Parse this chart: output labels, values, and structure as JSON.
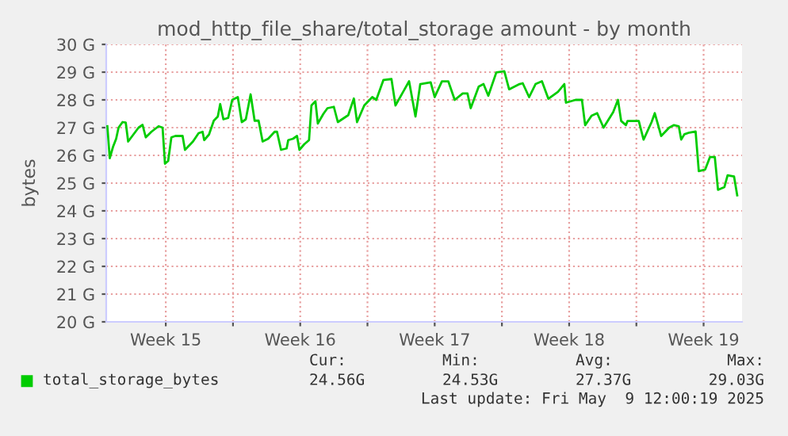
{
  "chart_data": {
    "type": "line",
    "title": "mod_http_file_share/total_storage amount - by month",
    "ylabel": "bytes",
    "x": [
      "2025-04-07T11:00",
      "2025-04-07T14:00",
      "2025-04-07T18:00",
      "2025-04-07T22:00",
      "2025-04-08T01:00",
      "2025-04-08T06:00",
      "2025-04-08T10:00",
      "2025-04-08T13:00",
      "2025-04-09T02:00",
      "2025-04-09T07:00",
      "2025-04-09T11:00",
      "2025-04-09T18:00",
      "2025-04-10T03:00",
      "2025-04-10T08:00",
      "2025-04-10T11:00",
      "2025-04-10T15:00",
      "2025-04-10T19:00",
      "2025-04-11T00:00",
      "2025-04-11T09:00",
      "2025-04-11T12:00",
      "2025-04-11T22:00",
      "2025-04-12T05:00",
      "2025-04-12T10:00",
      "2025-04-12T12:00",
      "2025-04-12T18:00",
      "2025-04-13T00:00",
      "2025-04-13T05:00",
      "2025-04-13T08:00",
      "2025-04-13T12:00",
      "2025-04-13T18:00",
      "2025-04-13T23:00",
      "2025-04-14T06:00",
      "2025-04-14T11:00",
      "2025-04-14T16:00",
      "2025-04-14T22:00",
      "2025-04-15T03:00",
      "2025-04-15T08:00",
      "2025-04-15T13:00",
      "2025-04-15T20:00",
      "2025-04-16T04:00",
      "2025-04-16T07:00",
      "2025-04-16T12:00",
      "2025-04-16T19:00",
      "2025-04-16T21:00",
      "2025-04-17T03:00",
      "2025-04-17T08:00",
      "2025-04-17T11:00",
      "2025-04-17T17:00",
      "2025-04-17T23:00",
      "2025-04-18T02:00",
      "2025-04-18T07:00",
      "2025-04-18T10:00",
      "2025-04-18T17:00",
      "2025-04-18T22:00",
      "2025-04-19T06:00",
      "2025-04-19T11:00",
      "2025-04-20T00:00",
      "2025-04-20T07:00",
      "2025-04-20T11:00",
      "2025-04-20T20:00",
      "2025-04-21T06:00",
      "2025-04-21T11:00",
      "2025-04-21T20:00",
      "2025-04-22T06:00",
      "2025-04-22T11:00",
      "2025-04-23T04:00",
      "2025-04-23T12:00",
      "2025-04-23T18:00",
      "2025-04-24T07:00",
      "2025-04-24T12:00",
      "2025-04-24T21:00",
      "2025-04-25T05:00",
      "2025-04-25T13:00",
      "2025-04-25T23:00",
      "2025-04-26T05:00",
      "2025-04-26T09:00",
      "2025-04-26T19:00",
      "2025-04-27T01:00",
      "2025-04-27T07:00",
      "2025-04-27T17:00",
      "2025-04-28T03:00",
      "2025-04-28T09:00",
      "2025-04-28T22:00",
      "2025-04-29T02:00",
      "2025-04-29T10:00",
      "2025-04-29T18:00",
      "2025-04-30T02:00",
      "2025-04-30T10:00",
      "2025-04-30T22:00",
      "2025-05-01T06:00",
      "2025-05-01T08:00",
      "2025-05-01T20:00",
      "2025-05-02T04:00",
      "2025-05-02T08:00",
      "2025-05-02T16:00",
      "2025-05-02T23:00",
      "2025-05-03T07:00",
      "2025-05-03T19:00",
      "2025-05-04T01:00",
      "2025-05-04T05:00",
      "2025-05-04T11:00",
      "2025-05-04T13:00",
      "2025-05-04T21:00",
      "2025-05-05T03:00",
      "2025-05-05T09:00",
      "2025-05-05T19:00",
      "2025-05-05T23:00",
      "2025-05-06T07:00",
      "2025-05-06T17:00",
      "2025-05-06T23:00",
      "2025-05-07T05:00",
      "2025-05-07T08:00",
      "2025-05-07T12:00",
      "2025-05-07T18:00",
      "2025-05-08T02:00",
      "2025-05-08T06:00",
      "2025-05-08T14:00",
      "2025-05-08T20:00",
      "2025-05-09T02:00",
      "2025-05-09T06:00",
      "2025-05-09T14:00",
      "2025-05-09T18:00",
      "2025-05-10T02:00",
      "2025-05-10T06:00"
    ],
    "series": [
      {
        "name": "total_storage_bytes",
        "color": "#00cc00",
        "values": [
          27.05,
          25.9,
          26.3,
          26.6,
          27.0,
          27.2,
          27.18,
          26.5,
          27.0,
          27.1,
          26.65,
          26.85,
          27.05,
          27.0,
          25.7,
          25.8,
          26.65,
          26.7,
          26.7,
          26.2,
          26.5,
          26.8,
          26.85,
          26.55,
          26.75,
          27.25,
          27.4,
          27.85,
          27.3,
          27.35,
          28.0,
          28.1,
          27.2,
          27.3,
          28.2,
          27.25,
          27.25,
          26.5,
          26.6,
          26.85,
          26.85,
          26.2,
          26.25,
          26.55,
          26.6,
          26.7,
          26.2,
          26.4,
          26.55,
          27.8,
          27.95,
          27.15,
          27.5,
          27.7,
          27.75,
          27.2,
          27.45,
          28.05,
          27.2,
          27.8,
          28.1,
          28.0,
          28.72,
          28.75,
          27.8,
          28.67,
          27.4,
          28.57,
          28.63,
          28.1,
          28.67,
          28.67,
          28.0,
          28.23,
          28.23,
          27.7,
          28.48,
          28.57,
          28.15,
          28.99,
          29.03,
          28.38,
          28.57,
          28.6,
          28.1,
          28.57,
          28.67,
          28.04,
          28.29,
          28.57,
          27.9,
          28.0,
          28.0,
          27.09,
          27.43,
          27.52,
          27.0,
          27.56,
          28.0,
          27.24,
          27.09,
          27.24,
          27.24,
          27.24,
          26.57,
          27.2,
          27.52,
          26.7,
          27.0,
          27.09,
          27.05,
          26.57,
          26.76,
          26.82,
          26.86,
          25.43,
          25.49,
          25.94,
          25.94,
          24.76,
          24.86,
          25.28,
          25.24,
          24.56
        ]
      }
    ],
    "xlim": [
      "2025-04-07T09:36",
      "2025-05-10T12:00"
    ],
    "xticks": [
      {
        "value": "2025-04-10T12:00",
        "label": "Week 15"
      },
      {
        "value": "2025-04-14",
        "label": null
      },
      {
        "value": "2025-04-17T12:00",
        "label": "Week 16"
      },
      {
        "value": "2025-04-21",
        "label": null
      },
      {
        "value": "2025-04-24T12:00",
        "label": "Week 17"
      },
      {
        "value": "2025-04-28",
        "label": null
      },
      {
        "value": "2025-05-01T12:00",
        "label": "Week 18"
      },
      {
        "value": "2025-05-05",
        "label": null
      },
      {
        "value": "2025-05-08T12:00",
        "label": "Week 19"
      }
    ],
    "ylim": [
      20,
      30
    ],
    "yticks": [
      {
        "value": 20,
        "label": "20 G"
      },
      {
        "value": 21,
        "label": "21 G"
      },
      {
        "value": 22,
        "label": "22 G"
      },
      {
        "value": 23,
        "label": "23 G"
      },
      {
        "value": 24,
        "label": "24 G"
      },
      {
        "value": 25,
        "label": "25 G"
      },
      {
        "value": 26,
        "label": "26 G"
      },
      {
        "value": 27,
        "label": "27 G"
      },
      {
        "value": 28,
        "label": "28 G"
      },
      {
        "value": 29,
        "label": "29 G"
      },
      {
        "value": 30,
        "label": "30 G"
      }
    ],
    "grid": true,
    "legend": "bottom",
    "marker": "none",
    "line_style": "solid",
    "annotations": [
      "Cur:",
      "24.56G",
      "Min:",
      "24.53G",
      "Avg:",
      "27.37G",
      "Max:",
      "29.03G",
      "Last update: Fri May  9 12:00:19 2025"
    ]
  }
}
